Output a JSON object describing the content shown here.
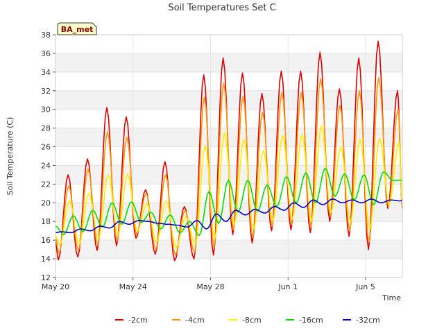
{
  "chart_data": {
    "type": "line",
    "title": "Soil Temperatures Set C",
    "xlabel": "Time",
    "ylabel": "Soil Temperature (C)",
    "annotation": "BA_met",
    "xlim": [
      0,
      17.9
    ],
    "ylim": [
      12,
      38
    ],
    "yticks": [
      12,
      14,
      16,
      18,
      20,
      22,
      24,
      26,
      28,
      30,
      32,
      34,
      36,
      38
    ],
    "xticks": [
      {
        "x": 0,
        "label": "May 20"
      },
      {
        "x": 4,
        "label": "May 24"
      },
      {
        "x": 8,
        "label": "May 28"
      },
      {
        "x": 12,
        "label": "Jun 1"
      },
      {
        "x": 16,
        "label": "Jun 5"
      }
    ],
    "legend_position": "bottom",
    "grid": true,
    "days": [
      0,
      1,
      2,
      3,
      4,
      5,
      6,
      7,
      8,
      9,
      10,
      11,
      12,
      13,
      14,
      15,
      16,
      17
    ],
    "series": [
      {
        "name": "-2cm",
        "color": "#dd0000",
        "peak_phase": 0.65,
        "start": 15.8,
        "end": 19.4,
        "max": [
          23.0,
          24.7,
          30.2,
          29.2,
          21.4,
          24.4,
          19.6,
          33.7,
          35.5,
          33.9,
          31.7,
          34.1,
          34.1,
          36.1,
          32.2,
          35.5,
          37.3,
          32.0
        ],
        "min": [
          13.9,
          14.2,
          14.9,
          15.4,
          16.2,
          14.5,
          13.8,
          14.0,
          14.4,
          16.6,
          15.7,
          17.0,
          17.1,
          16.8,
          18.0,
          16.4,
          15.0,
          19.4
        ]
      },
      {
        "name": "-4cm",
        "color": "#ff9900",
        "peak_phase": 0.68,
        "start": 16.2,
        "end": 19.6,
        "max": [
          21.8,
          23.6,
          27.6,
          27.0,
          21.0,
          23.0,
          19.2,
          31.3,
          32.8,
          31.4,
          29.7,
          31.8,
          31.8,
          33.3,
          30.4,
          32.0,
          33.4,
          30.0
        ],
        "min": [
          14.6,
          14.9,
          15.5,
          15.9,
          16.6,
          15.0,
          14.4,
          14.7,
          15.2,
          17.1,
          16.3,
          17.5,
          17.7,
          17.4,
          18.5,
          17.0,
          15.8,
          19.6
        ]
      },
      {
        "name": "-8cm",
        "color": "#ffee00",
        "peak_phase": 0.72,
        "start": 16.5,
        "end": 19.8,
        "max": [
          20.2,
          21.0,
          23.0,
          23.1,
          19.9,
          20.2,
          18.5,
          26.1,
          27.5,
          26.8,
          25.6,
          27.2,
          27.3,
          28.2,
          26.0,
          26.8,
          26.9,
          26.5
        ],
        "min": [
          15.5,
          15.6,
          16.2,
          16.6,
          17.0,
          15.8,
          15.2,
          15.6,
          16.2,
          17.7,
          17.2,
          18.1,
          18.3,
          18.1,
          19.0,
          17.9,
          17.2,
          19.8
        ]
      },
      {
        "name": "-16cm",
        "color": "#00dd00",
        "peak_phase": 0.92,
        "start": 17.5,
        "end": 22.4,
        "max": [
          18.6,
          19.2,
          20.0,
          20.1,
          19.0,
          18.7,
          18.0,
          21.2,
          22.4,
          22.4,
          21.9,
          22.8,
          23.2,
          23.7,
          23.1,
          23.0,
          23.3,
          22.6
        ],
        "min": [
          16.6,
          16.9,
          17.4,
          17.7,
          17.9,
          17.2,
          16.8,
          16.5,
          17.8,
          19.0,
          19.1,
          19.6,
          20.0,
          20.0,
          20.7,
          20.3,
          19.8,
          22.4
        ]
      },
      {
        "name": "-32cm",
        "color": "#0000cc",
        "peak_phase": 0.3,
        "start": 16.8,
        "end": 20.3,
        "max": [
          16.9,
          17.2,
          17.5,
          18.0,
          18.1,
          17.8,
          17.6,
          18.1,
          18.8,
          19.2,
          19.3,
          19.6,
          20.0,
          20.3,
          20.4,
          20.3,
          20.4,
          20.3
        ],
        "min": [
          16.8,
          17.0,
          17.3,
          17.7,
          18.0,
          17.7,
          17.4,
          17.2,
          18.0,
          18.7,
          18.9,
          19.2,
          19.5,
          19.8,
          20.0,
          20.0,
          20.0,
          20.2
        ]
      }
    ]
  }
}
